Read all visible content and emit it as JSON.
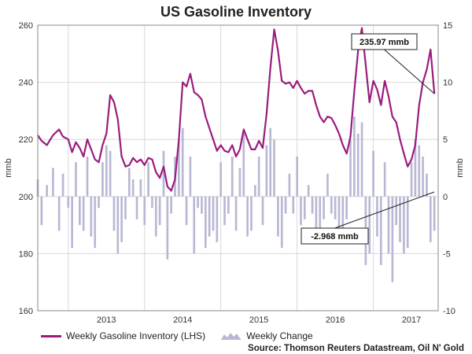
{
  "chart_data": {
    "type": "line",
    "title": "US Gasoline Inventory",
    "ylabel_left": "mmb",
    "ylabel_right": "mmb",
    "ylim_left": [
      160,
      260
    ],
    "ylim_right": [
      -10,
      15
    ],
    "yticks_left": [
      160,
      180,
      200,
      220,
      240,
      260
    ],
    "yticks_right": [
      -10,
      -5,
      0,
      5,
      10,
      15
    ],
    "xlim": [
      2012.6,
      2017.85
    ],
    "xticks": [
      2013,
      2014,
      2015,
      2016,
      2017
    ],
    "xtick_labels": [
      "2013",
      "2014",
      "2015",
      "2016",
      "2017"
    ],
    "grid": true,
    "series": [
      {
        "name": "Weekly Gasoline Inventory (LHS)",
        "axis": "left",
        "color": "#9b1b7e",
        "x": [
          2012.6,
          2012.65,
          2012.72,
          2012.8,
          2012.88,
          2012.93,
          2013.0,
          2013.05,
          2013.1,
          2013.15,
          2013.2,
          2013.25,
          2013.3,
          2013.35,
          2013.4,
          2013.45,
          2013.5,
          2013.55,
          2013.6,
          2013.65,
          2013.7,
          2013.75,
          2013.8,
          2013.85,
          2013.9,
          2013.95,
          2014.0,
          2014.05,
          2014.1,
          2014.15,
          2014.2,
          2014.25,
          2014.3,
          2014.35,
          2014.4,
          2014.45,
          2014.5,
          2014.55,
          2014.6,
          2014.65,
          2014.7,
          2014.75,
          2014.8,
          2014.85,
          2014.9,
          2014.95,
          2015.0,
          2015.05,
          2015.1,
          2015.15,
          2015.2,
          2015.25,
          2015.3,
          2015.35,
          2015.4,
          2015.45,
          2015.5,
          2015.55,
          2015.6,
          2015.65,
          2015.7,
          2015.75,
          2015.8,
          2015.85,
          2015.9,
          2015.95,
          2016.0,
          2016.05,
          2016.1,
          2016.15,
          2016.2,
          2016.25,
          2016.3,
          2016.35,
          2016.4,
          2016.45,
          2016.5,
          2016.55,
          2016.6,
          2016.65,
          2016.7,
          2016.75,
          2016.8,
          2016.85,
          2016.9,
          2016.95,
          2017.0,
          2017.05,
          2017.1,
          2017.15,
          2017.2,
          2017.25,
          2017.3,
          2017.35,
          2017.4,
          2017.45,
          2017.5,
          2017.55,
          2017.6,
          2017.65,
          2017.7,
          2017.75,
          2017.8
        ],
        "values": [
          221.5,
          219.5,
          218.0,
          221.5,
          223.5,
          221.0,
          220.0,
          215.5,
          219.0,
          217.0,
          214.0,
          220.0,
          216.5,
          213.0,
          212.0,
          218.0,
          222.0,
          235.5,
          233.0,
          227.0,
          214.0,
          210.5,
          211.0,
          213.5,
          212.0,
          213.0,
          211.0,
          213.5,
          213.0,
          208.5,
          206.5,
          210.5,
          203.5,
          202.0,
          206.0,
          220.0,
          240.0,
          238.5,
          243.0,
          236.5,
          235.5,
          234.0,
          228.0,
          224.0,
          220.0,
          216.0,
          218.0,
          216.0,
          215.5,
          218.0,
          214.0,
          216.5,
          223.5,
          220.0,
          216.5,
          216.5,
          219.5,
          217.0,
          229.0,
          245.0,
          258.5,
          251.0,
          240.5,
          239.5,
          240.0,
          238.0,
          240.5,
          238.0,
          236.0,
          237.0,
          237.0,
          232.0,
          228.0,
          226.0,
          228.0,
          227.5,
          225.0,
          222.0,
          218.0,
          215.0,
          221.0,
          237.0,
          251.0,
          259.0,
          246.0,
          233.0,
          240.5,
          237.5,
          232.0,
          240.5,
          235.0,
          228.0,
          226.0,
          220.0,
          215.0,
          210.5,
          213.0,
          218.0,
          232.0,
          240.0,
          244.5,
          251.5,
          236.0
        ]
      },
      {
        "name": "Weekly Change",
        "axis": "right",
        "color": "#b8b8d4",
        "x": [
          2012.6,
          2012.65,
          2012.72,
          2012.8,
          2012.88,
          2012.93,
          2013.0,
          2013.05,
          2013.1,
          2013.15,
          2013.2,
          2013.25,
          2013.3,
          2013.35,
          2013.4,
          2013.45,
          2013.5,
          2013.55,
          2013.6,
          2013.65,
          2013.7,
          2013.75,
          2013.8,
          2013.85,
          2013.9,
          2013.95,
          2014.0,
          2014.05,
          2014.1,
          2014.15,
          2014.2,
          2014.25,
          2014.3,
          2014.35,
          2014.4,
          2014.45,
          2014.5,
          2014.55,
          2014.6,
          2014.65,
          2014.7,
          2014.75,
          2014.8,
          2014.85,
          2014.9,
          2014.95,
          2015.0,
          2015.05,
          2015.1,
          2015.15,
          2015.2,
          2015.25,
          2015.3,
          2015.35,
          2015.4,
          2015.45,
          2015.5,
          2015.55,
          2015.6,
          2015.65,
          2015.7,
          2015.75,
          2015.8,
          2015.85,
          2015.9,
          2015.95,
          2016.0,
          2016.05,
          2016.1,
          2016.15,
          2016.2,
          2016.25,
          2016.3,
          2016.35,
          2016.4,
          2016.45,
          2016.5,
          2016.55,
          2016.6,
          2016.65,
          2016.7,
          2016.75,
          2016.8,
          2016.85,
          2016.9,
          2016.95,
          2017.0,
          2017.05,
          2017.1,
          2017.15,
          2017.2,
          2017.25,
          2017.3,
          2017.35,
          2017.4,
          2017.45,
          2017.5,
          2017.55,
          2017.6,
          2017.65,
          2017.7,
          2017.75,
          2017.8
        ],
        "values": [
          1.5,
          -2.5,
          1.0,
          2.5,
          -3.0,
          2.0,
          -1.0,
          -4.5,
          3.0,
          -2.5,
          -3.0,
          3.5,
          -3.5,
          -4.5,
          -1.0,
          3.0,
          4.5,
          4.0,
          -3.0,
          -5.0,
          -4.0,
          -2.0,
          2.5,
          1.5,
          -2.0,
          1.5,
          -2.5,
          3.0,
          -1.0,
          -3.5,
          -2.5,
          4.0,
          -5.5,
          -1.5,
          3.5,
          5.0,
          6.0,
          -2.5,
          3.5,
          -5.0,
          -1.0,
          -1.5,
          -4.5,
          -3.5,
          -3.0,
          -4.0,
          3.0,
          -2.5,
          -1.5,
          3.5,
          -3.0,
          2.5,
          5.5,
          -3.5,
          -3.0,
          1.0,
          3.5,
          -2.5,
          4.5,
          6.0,
          5.0,
          -3.5,
          -4.5,
          -1.5,
          2.0,
          -1.5,
          3.5,
          -2.5,
          -2.0,
          1.0,
          -1.5,
          -3.5,
          -3.0,
          -2.0,
          2.0,
          -1.5,
          -2.0,
          -3.0,
          -3.5,
          -2.0,
          5.0,
          7.0,
          5.5,
          6.5,
          -6.0,
          -5.0,
          4.0,
          -3.5,
          -6.0,
          3.0,
          -5.0,
          -7.5,
          -2.5,
          -4.0,
          -5.0,
          -4.5,
          3.0,
          5.0,
          4.5,
          3.5,
          2.0,
          -4.0,
          -3.0
        ]
      }
    ],
    "annotations": [
      {
        "text": "235.97 mmb",
        "x": 2017.8,
        "y": 236.0,
        "axis": "left"
      },
      {
        "text": "-2.968 mmb",
        "x": 2017.8,
        "y": 0.4,
        "axis": "right"
      }
    ],
    "legend_position": "bottom-left",
    "source": "Source: Thomson Reuters Datastream, Oil N' Gold"
  }
}
